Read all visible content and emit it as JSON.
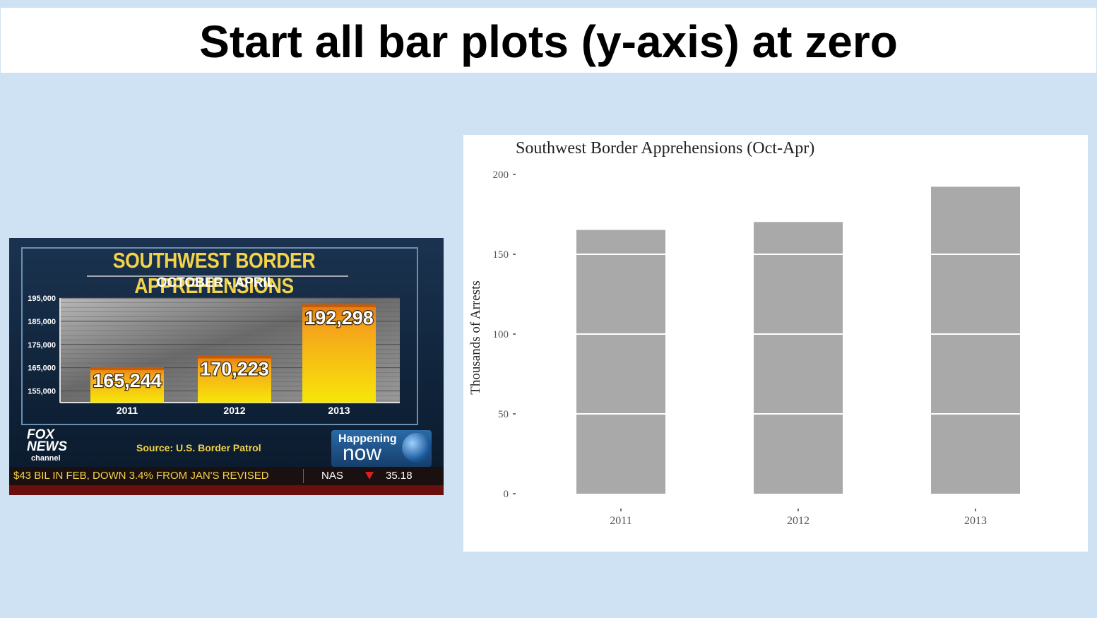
{
  "slide": {
    "title": "Start all bar plots (y-axis) at zero"
  },
  "tv_screenshot": {
    "title": "SOUTHWEST BORDER APPREHENSIONS",
    "subtitle": "OCTOBER - APRIL",
    "source": "Source: U.S. Border Patrol",
    "logo": {
      "line1": "FOX",
      "line2": "NEWS",
      "line3": "channel"
    },
    "show": {
      "line1": "Happening",
      "line2": "now"
    },
    "ticker": {
      "text": "$43 BIL IN FEB, DOWN 3.4% FROM JAN'S REVISED",
      "symbol": "NAS",
      "value": "35.18"
    },
    "colors": {
      "title": "#f3d34a",
      "bar_top": "#e07a10",
      "bar_bottom": "#f7e60a"
    }
  },
  "chart_data": [
    {
      "id": "fox",
      "type": "bar",
      "categories": [
        "2011",
        "2012",
        "2013"
      ],
      "values": [
        165244,
        170223,
        192298
      ],
      "value_labels": [
        "165,244",
        "170,223",
        "192,298"
      ],
      "title": "SOUTHWEST BORDER APPREHENSIONS",
      "subtitle": "OCTOBER - APRIL",
      "ylim": [
        150000,
        195000
      ],
      "yticks": [
        155000,
        165000,
        175000,
        185000,
        195000
      ],
      "ytick_labels": [
        "155,000",
        "165,000",
        "175,000",
        "185,000",
        "195,000"
      ],
      "grid": true,
      "source": "Source: U.S. Border Patrol"
    },
    {
      "id": "ggplot",
      "type": "bar",
      "categories": [
        "2011",
        "2012",
        "2013"
      ],
      "values": [
        165.244,
        170.223,
        192.298
      ],
      "title": "Southwest Border Apprehensions (Oct-Apr)",
      "xlabel": "",
      "ylabel": "Thousands of Arrests",
      "ylim": [
        0,
        200
      ],
      "yticks": [
        0,
        50,
        100,
        150,
        200
      ],
      "ytick_labels": [
        "0",
        "50",
        "100",
        "150",
        "200"
      ],
      "grid": true,
      "bar_color": "#a9a9a9"
    }
  ]
}
